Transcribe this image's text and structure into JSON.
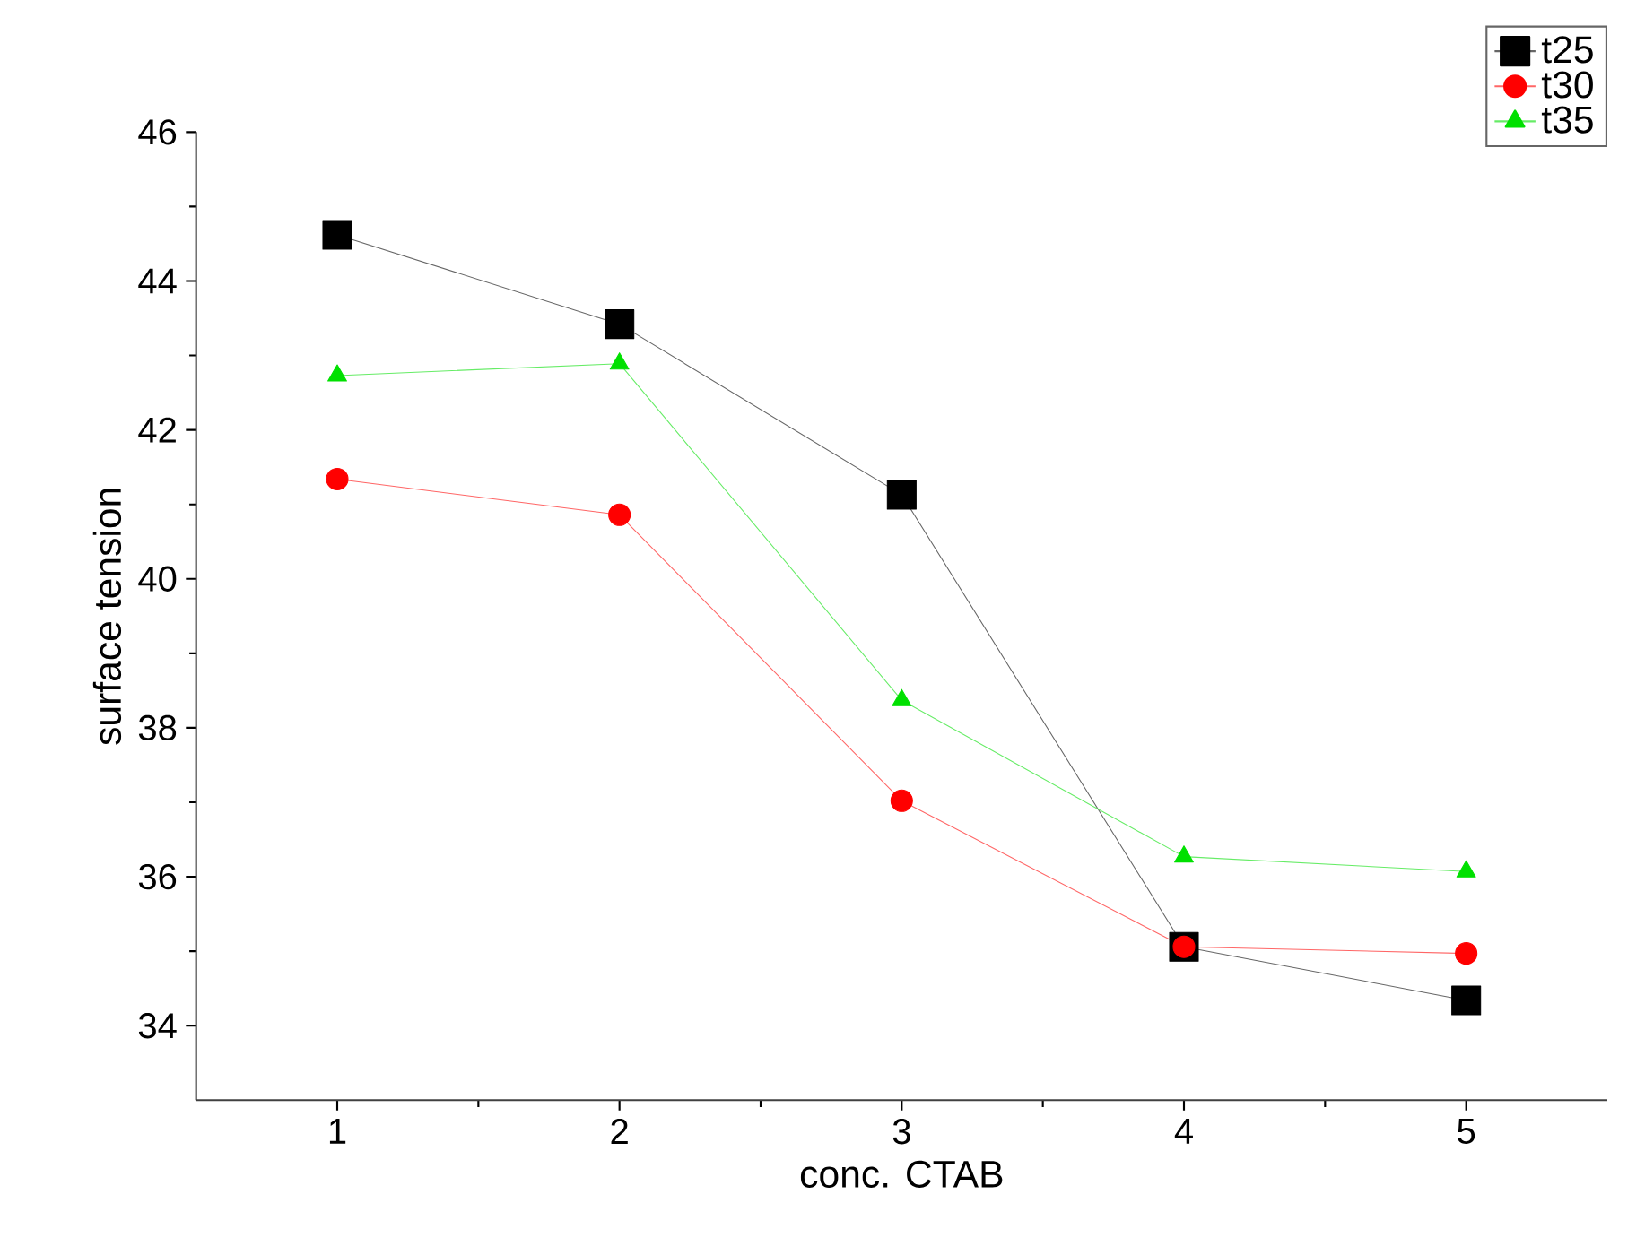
{
  "chart_data": {
    "type": "line",
    "xlabel": "conc. CTAB",
    "ylabel": "surface tension",
    "x": [
      1,
      2,
      3,
      4,
      5
    ],
    "xlim": [
      0.5,
      5.5
    ],
    "xticks": [
      1,
      2,
      3,
      4,
      5
    ],
    "ylim": [
      33,
      46
    ],
    "yticks": [
      34,
      36,
      38,
      40,
      42,
      44,
      46
    ],
    "series": [
      {
        "name": "t25",
        "color": "#000000",
        "marker": "square",
        "values": [
          44.62,
          43.42,
          41.13,
          35.06,
          34.34
        ]
      },
      {
        "name": "t30",
        "color": "#ff0000",
        "marker": "circle",
        "values": [
          41.34,
          40.86,
          37.02,
          35.06,
          34.97
        ]
      },
      {
        "name": "t35",
        "color": "#00e000",
        "marker": "triangle",
        "values": [
          42.73,
          42.89,
          38.37,
          36.27,
          36.07
        ]
      }
    ],
    "legend": "top right",
    "grid": false,
    "line_style": "solid"
  }
}
